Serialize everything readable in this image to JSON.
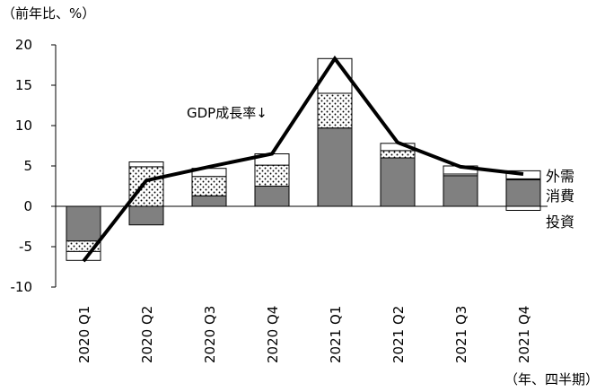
{
  "chart_data": {
    "type": "bar",
    "stacked": true,
    "y_unit_label": "（前年比、%）",
    "x_unit_label": "（年、四半期）",
    "categories": [
      "2020 Q1",
      "2020 Q2",
      "2020 Q3",
      "2020 Q4",
      "2021 Q1",
      "2021 Q2",
      "2021 Q3",
      "2021 Q4"
    ],
    "ylim": [
      -10,
      20
    ],
    "yticks": [
      -10,
      -5,
      0,
      5,
      10,
      15,
      20
    ],
    "ytick_labels": [
      "-10",
      "-5",
      "0",
      "5",
      "10",
      "15",
      "20"
    ],
    "series": [
      {
        "name": "投資",
        "fill": "#808080",
        "values": [
          -4.3,
          -2.3,
          1.3,
          2.5,
          9.7,
          6.0,
          3.8,
          3.3
        ]
      },
      {
        "name": "消費",
        "fill": "dotted",
        "values": [
          -1.3,
          4.9,
          2.4,
          2.6,
          4.3,
          0.9,
          0.2,
          0.1
        ]
      },
      {
        "name": "外需",
        "fill": "#ffffff",
        "values": [
          -1.1,
          0.6,
          1.0,
          1.4,
          4.3,
          0.9,
          1.0,
          1.0
        ]
      }
    ],
    "extra_segments": [
      {
        "series": "外需",
        "category": "2021 Q4",
        "value": -0.5
      }
    ],
    "line": {
      "name": "GDP成長率",
      "values": [
        -6.8,
        3.2,
        4.9,
        6.5,
        18.3,
        7.9,
        4.9,
        4.0
      ]
    },
    "annotations": {
      "gdp_label": "GDP成長率↓",
      "legend_outside": [
        "外需",
        "消費",
        "投資"
      ]
    }
  },
  "colors": {
    "invest": "#808080",
    "line": "#000000",
    "border": "#000000"
  }
}
